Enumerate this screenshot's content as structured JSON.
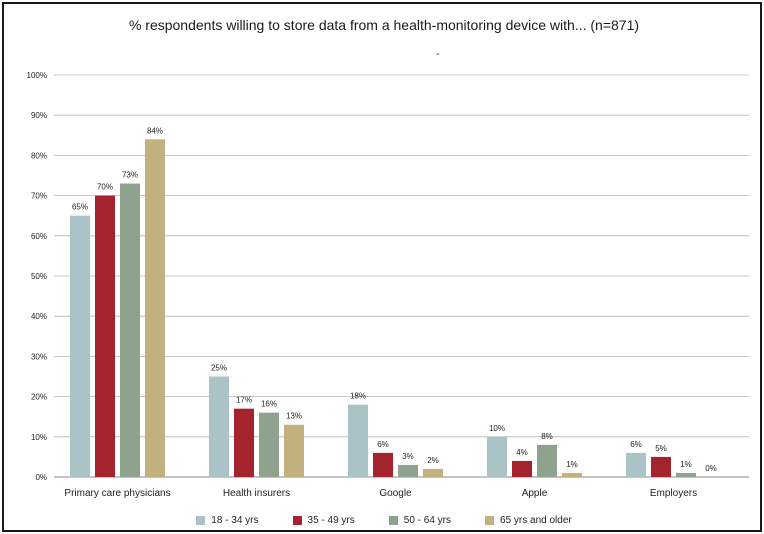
{
  "chart_data": {
    "type": "bar",
    "title": "% respondents willing to store data from a health-monitoring device with... (n=871)",
    "subtitle": "-",
    "categories": [
      "Primary care physicians",
      "Health insurers",
      "Google",
      "Apple",
      "Employers"
    ],
    "series": [
      {
        "name": "18 - 34 yrs",
        "color": "#a9c3c6",
        "values": [
          65,
          25,
          18,
          10,
          6
        ],
        "labels": [
          "65%",
          "25%",
          "18%",
          "10%",
          "6%"
        ]
      },
      {
        "name": "35 - 49 yrs",
        "color": "#a3232e",
        "values": [
          70,
          17,
          6,
          4,
          5
        ],
        "labels": [
          "70%",
          "17%",
          "6%",
          "4%",
          "5%"
        ]
      },
      {
        "name": "50 - 64 yrs",
        "color": "#8ea28e",
        "values": [
          73,
          16,
          3,
          8,
          1
        ],
        "labels": [
          "73%",
          "16%",
          "3%",
          "8%",
          "1%"
        ]
      },
      {
        "name": "65 yrs and older",
        "color": "#c3b07f",
        "values": [
          84,
          13,
          2,
          1,
          0
        ],
        "labels": [
          "84%",
          "13%",
          "2%",
          "1%",
          "0%"
        ]
      }
    ],
    "yticks": [
      "0%",
      "10%",
      "20%",
      "30%",
      "40%",
      "50%",
      "60%",
      "70%",
      "80%",
      "90%",
      "100%"
    ],
    "ylim": [
      0,
      100
    ],
    "grid": true,
    "xlabel": "",
    "ylabel": "",
    "legend_position": "bottom"
  }
}
